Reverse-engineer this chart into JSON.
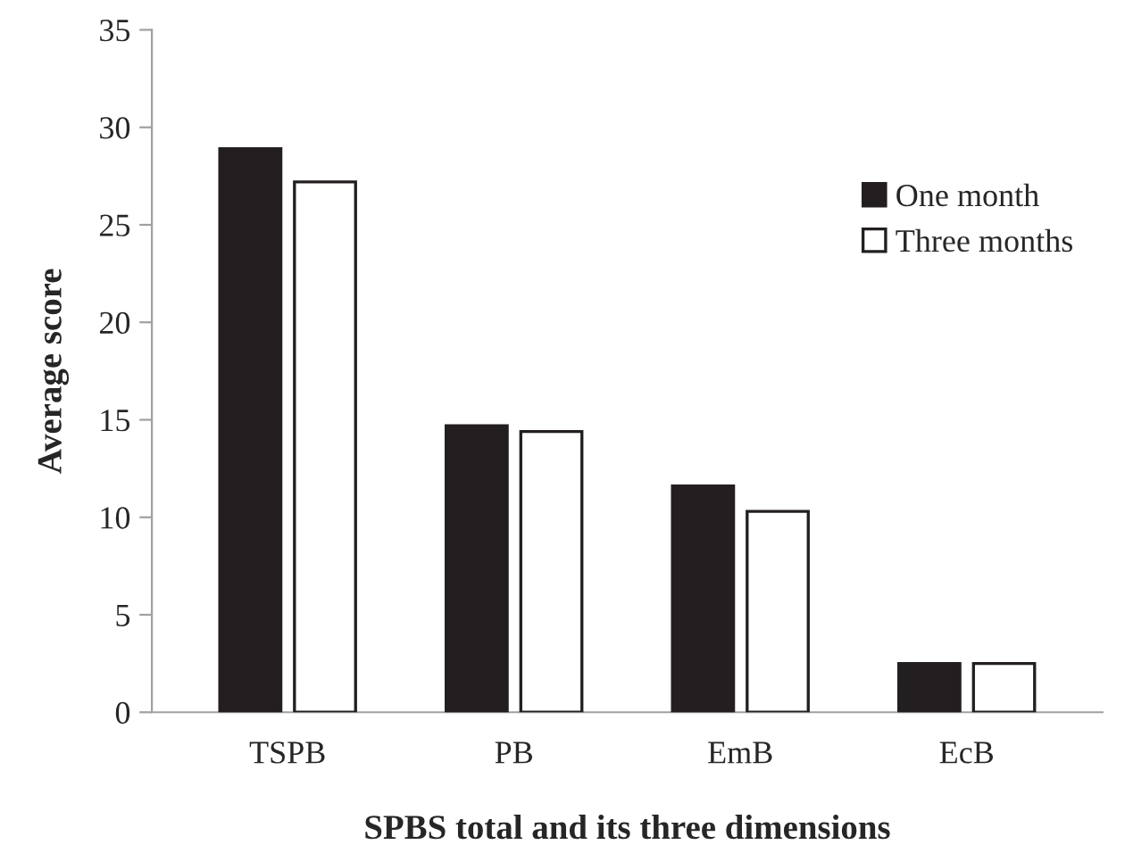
{
  "chart_data": {
    "type": "bar",
    "xlabel": "SPBS total and its three dimensions",
    "ylabel": "Average score",
    "categories": [
      "TSPB",
      "PB",
      "EmB",
      "EcB"
    ],
    "series": [
      {
        "name": "One month",
        "color": "#231f20",
        "values": [
          28.9,
          14.7,
          11.6,
          2.5
        ]
      },
      {
        "name": "Three months",
        "color": "#ffffff",
        "values": [
          27.2,
          14.4,
          10.3,
          2.5
        ]
      }
    ],
    "ylim": [
      0,
      35
    ],
    "yticks": [
      0,
      5,
      10,
      15,
      20,
      25,
      30,
      35
    ],
    "grid": false,
    "legend": "right"
  }
}
